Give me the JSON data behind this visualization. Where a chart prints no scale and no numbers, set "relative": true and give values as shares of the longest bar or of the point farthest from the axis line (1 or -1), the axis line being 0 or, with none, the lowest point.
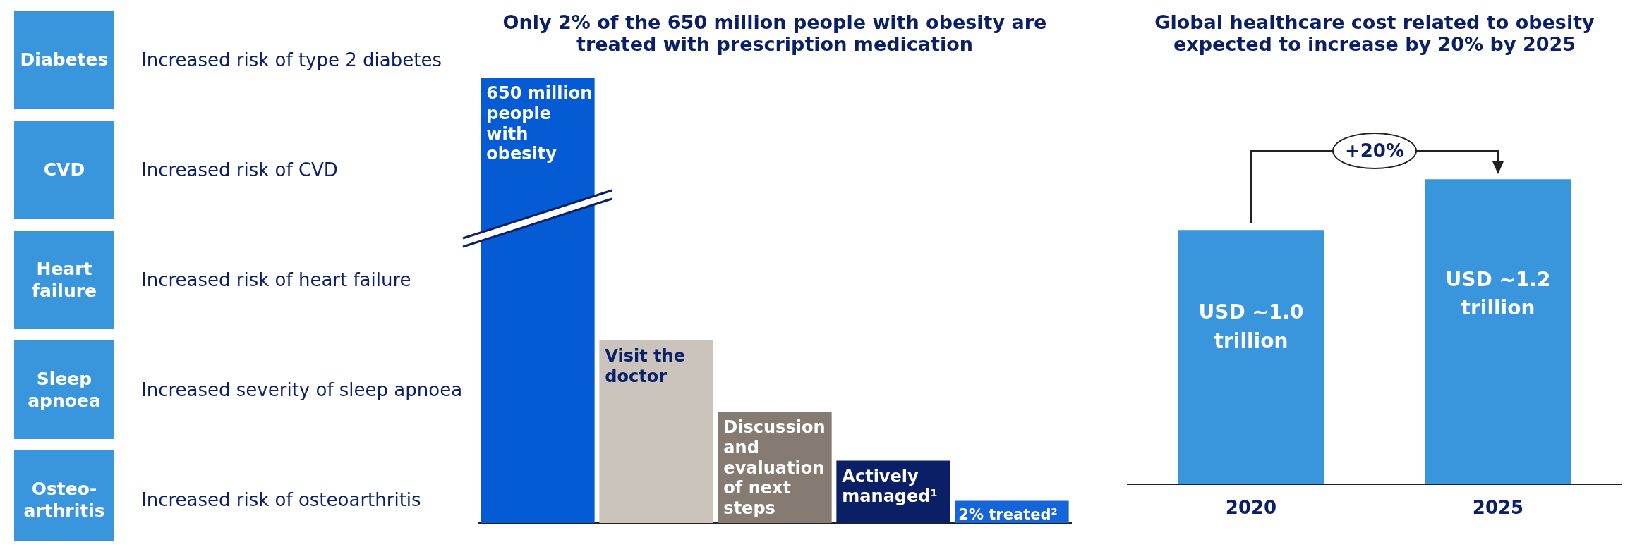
{
  "chart_data": [
    {
      "type": "other",
      "color": "#3a96dc",
      "categories": [
        "Diabetes",
        "CVD",
        "Heart failure",
        "Sleep apnoea",
        "Osteo-arthritis"
      ],
      "annotations": [
        "Increased risk of type 2 diabetes",
        "Increased risk of CVD",
        "Increased risk of heart failure",
        "Increased severity of sleep apnoea",
        "Increased risk of osteoarthritis"
      ]
    },
    {
      "type": "bar",
      "title": "Only 2% of the 650 million people with obesity are treated with prescription medication",
      "relative": true,
      "tick_labels": false,
      "categories": [
        "650 million people with obesity",
        "Visit the doctor",
        "Discussion and evaluation of next steps",
        "Actively managed$^{1}$",
        "2% treated$^{2}$"
      ],
      "values": [
        1,
        0.41,
        0.25,
        0.14,
        0.05
      ],
      "colors": [
        "#045bd3",
        "#cbc4bc",
        "#857b72",
        "#0a1f66",
        "#1565d8"
      ]
    },
    {
      "type": "bar",
      "title": "Global healthcare cost related to obesity expected to increase by 20% by 2025",
      "tick_labels": "x",
      "categories": [
        "2020",
        "2025"
      ],
      "values": [
        1.0,
        1.2
      ],
      "color": "#3a96dc",
      "value_labels": [
        "USD ~1.0 trillion",
        "USD ~1.2 trillion"
      ],
      "annotations": [
        "+20%"
      ]
    }
  ]
}
